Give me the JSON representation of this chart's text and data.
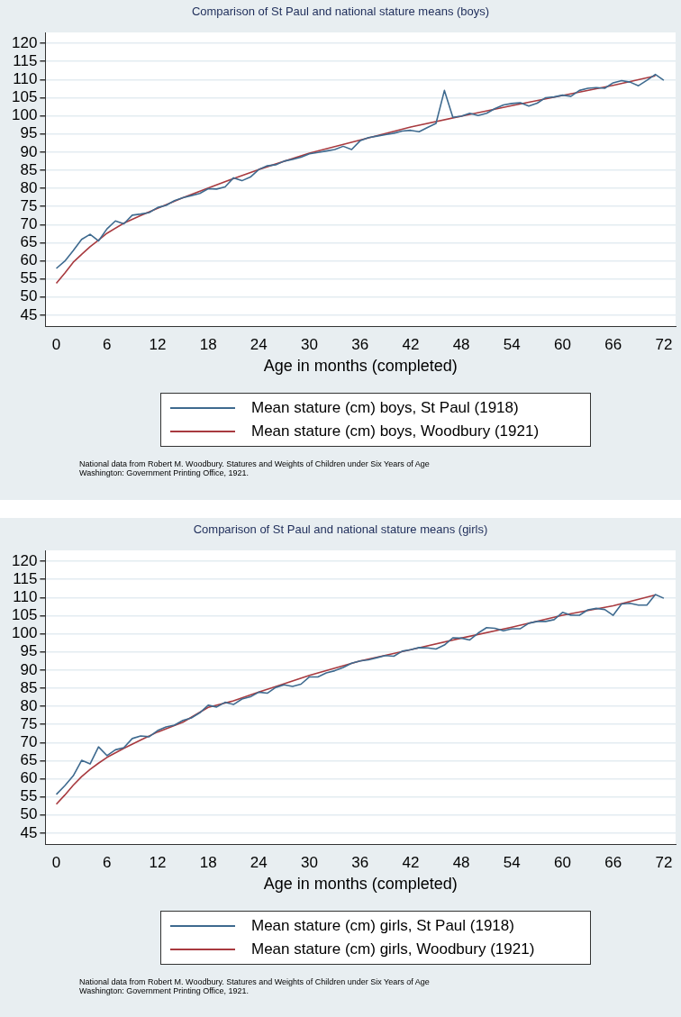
{
  "chart_data": [
    {
      "type": "line",
      "title": "Comparison of St Paul and national stature means (boys)",
      "xlabel": "Age in months (completed)",
      "xlim": [
        -1.3,
        73.4
      ],
      "xticks": [
        0,
        6,
        12,
        18,
        24,
        30,
        36,
        42,
        48,
        54,
        60,
        66,
        72
      ],
      "ylim": [
        42,
        123
      ],
      "yticks": [
        45,
        50,
        55,
        60,
        65,
        70,
        75,
        80,
        85,
        90,
        95,
        100,
        105,
        110,
        115,
        120
      ],
      "grid": "y",
      "legend": "bottom",
      "marker": "none",
      "line_style": "solid",
      "series": [
        {
          "name": "Mean stature (cm) boys, St Paul (1918)",
          "color": "#3e6a8f",
          "x": [
            0,
            1,
            2,
            3,
            4,
            5,
            6,
            7,
            8,
            9,
            10,
            11,
            12,
            13,
            14,
            15,
            16,
            17,
            18,
            19,
            20,
            21,
            22,
            23,
            24,
            25,
            26,
            27,
            28,
            29,
            30,
            31,
            32,
            33,
            34,
            35,
            36,
            37,
            38,
            39,
            40,
            41,
            42,
            43,
            44,
            45,
            46,
            47,
            48,
            49,
            50,
            51,
            52,
            53,
            54,
            55,
            56,
            57,
            58,
            59,
            60,
            61,
            62,
            63,
            64,
            65,
            66,
            67,
            68,
            69,
            70,
            71,
            72
          ],
          "values": [
            57.9,
            59.9,
            62.8,
            65.9,
            67.3,
            65.5,
            68.8,
            71.0,
            70.2,
            72.6,
            72.9,
            73.3,
            74.7,
            75.3,
            76.6,
            77.4,
            78.0,
            78.6,
            79.9,
            79.8,
            80.4,
            82.9,
            82.1,
            83.1,
            85.2,
            86.2,
            86.5,
            87.5,
            88.0,
            88.6,
            89.5,
            89.9,
            90.3,
            90.7,
            91.6,
            90.7,
            93.1,
            94.0,
            94.4,
            94.8,
            95.2,
            95.8,
            96.0,
            95.6,
            96.8,
            97.9,
            107.0,
            99.6,
            99.9,
            100.7,
            100.1,
            100.7,
            102.0,
            103.0,
            103.4,
            103.6,
            102.7,
            103.5,
            105.0,
            105.2,
            105.7,
            105.4,
            107.0,
            107.6,
            107.8,
            107.6,
            109.1,
            109.7,
            109.3,
            108.3,
            109.8,
            111.4,
            109.8
          ]
        },
        {
          "name": "Mean stature (cm) boys, Woodbury (1921)",
          "color": "#a83a3f",
          "x": [
            0,
            1,
            2,
            3,
            4,
            5,
            6,
            8,
            10,
            12,
            15,
            18,
            21,
            24,
            30,
            36,
            42,
            48,
            54,
            60,
            66,
            71
          ],
          "values": [
            53.8,
            56.6,
            59.6,
            61.8,
            63.9,
            65.7,
            67.6,
            70.4,
            72.5,
            74.5,
            77.4,
            80.1,
            82.7,
            85.2,
            89.7,
            93.3,
            96.9,
            99.9,
            102.8,
            105.6,
            108.4,
            111.0
          ]
        }
      ],
      "annotations": [
        "National data from Robert M. Woodbury.  Statures and Weights of Children under Six Years of Age",
        "Washington: Government Printing Office, 1921."
      ]
    },
    {
      "type": "line",
      "title": "Comparison of St Paul and national stature means (girls)",
      "xlabel": "Age in months (completed)",
      "xlim": [
        -1.3,
        73.4
      ],
      "xticks": [
        0,
        6,
        12,
        18,
        24,
        30,
        36,
        42,
        48,
        54,
        60,
        66,
        72
      ],
      "ylim": [
        42,
        123
      ],
      "yticks": [
        45,
        50,
        55,
        60,
        65,
        70,
        75,
        80,
        85,
        90,
        95,
        100,
        105,
        110,
        115,
        120
      ],
      "grid": "y",
      "legend": "bottom",
      "marker": "none",
      "line_style": "solid",
      "series": [
        {
          "name": "Mean stature (cm) girls, St Paul (1918)",
          "color": "#3e6a8f",
          "x": [
            0,
            1,
            2,
            3,
            4,
            5,
            6,
            7,
            8,
            9,
            10,
            11,
            12,
            13,
            14,
            15,
            16,
            17,
            18,
            19,
            20,
            21,
            22,
            23,
            24,
            25,
            26,
            27,
            28,
            29,
            30,
            31,
            32,
            33,
            34,
            35,
            36,
            37,
            38,
            39,
            40,
            41,
            42,
            43,
            44,
            45,
            46,
            47,
            48,
            49,
            50,
            51,
            52,
            53,
            54,
            55,
            56,
            57,
            58,
            59,
            60,
            61,
            62,
            63,
            64,
            65,
            66,
            67,
            68,
            69,
            70,
            71,
            72
          ],
          "values": [
            55.7,
            58.1,
            60.8,
            65.1,
            64.1,
            68.8,
            66.4,
            68.0,
            68.6,
            71.1,
            71.8,
            71.6,
            73.3,
            74.3,
            74.8,
            76.1,
            76.8,
            78.2,
            80.3,
            79.8,
            81.1,
            80.5,
            82.0,
            82.6,
            83.9,
            83.6,
            85.2,
            85.9,
            85.5,
            86.1,
            88.1,
            88.1,
            89.2,
            89.8,
            90.7,
            91.9,
            92.5,
            92.8,
            93.4,
            94.0,
            93.8,
            95.2,
            95.6,
            96.2,
            96.1,
            95.8,
            96.9,
            98.9,
            98.8,
            98.3,
            100.2,
            101.7,
            101.5,
            100.8,
            101.4,
            101.4,
            102.9,
            103.4,
            103.4,
            103.9,
            105.9,
            105.1,
            105.1,
            106.6,
            107.0,
            106.7,
            105.1,
            108.2,
            108.4,
            107.9,
            107.9,
            110.8,
            109.8
          ]
        },
        {
          "name": "Mean stature (cm) girls, Woodbury (1921)",
          "color": "#a83a3f",
          "x": [
            0,
            1,
            2,
            3,
            4,
            5,
            6,
            8,
            10,
            12,
            15,
            18,
            21,
            24,
            30,
            36,
            42,
            48,
            54,
            60,
            66,
            71
          ],
          "values": [
            53.0,
            55.5,
            58.2,
            60.6,
            62.6,
            64.3,
            65.9,
            68.4,
            70.7,
            72.9,
            75.6,
            79.7,
            81.5,
            83.9,
            88.5,
            92.5,
            95.6,
            98.8,
            101.8,
            105.1,
            107.7,
            110.7
          ]
        }
      ],
      "annotations": [
        "National data from Robert M. Woodbury.  Statures and Weights of Children under Six Years of Age",
        "Washington: Government Printing Office, 1921."
      ]
    }
  ]
}
